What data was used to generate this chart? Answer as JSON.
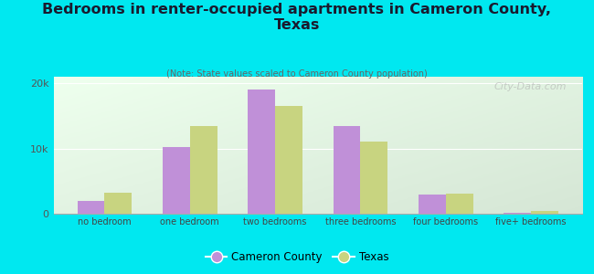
{
  "title": "Bedrooms in renter-occupied apartments in Cameron County,\nTexas",
  "subtitle": "(Note: State values scaled to Cameron County population)",
  "categories": [
    "no bedroom",
    "one bedroom",
    "two bedrooms",
    "three bedrooms",
    "four bedrooms",
    "five+ bedrooms"
  ],
  "cameron_values": [
    2000,
    10200,
    19000,
    13500,
    3000,
    200
  ],
  "texas_values": [
    3200,
    13500,
    16500,
    11000,
    3100,
    400
  ],
  "cameron_color": "#c090d8",
  "texas_color": "#c8d480",
  "background_outer": "#00e8f0",
  "ylim": [
    0,
    21000
  ],
  "yticks": [
    0,
    10000,
    20000
  ],
  "ytick_labels": [
    "0",
    "10k",
    "20k"
  ],
  "watermark": "City-Data.com",
  "legend_labels": [
    "Cameron County",
    "Texas"
  ],
  "bar_width": 0.32
}
